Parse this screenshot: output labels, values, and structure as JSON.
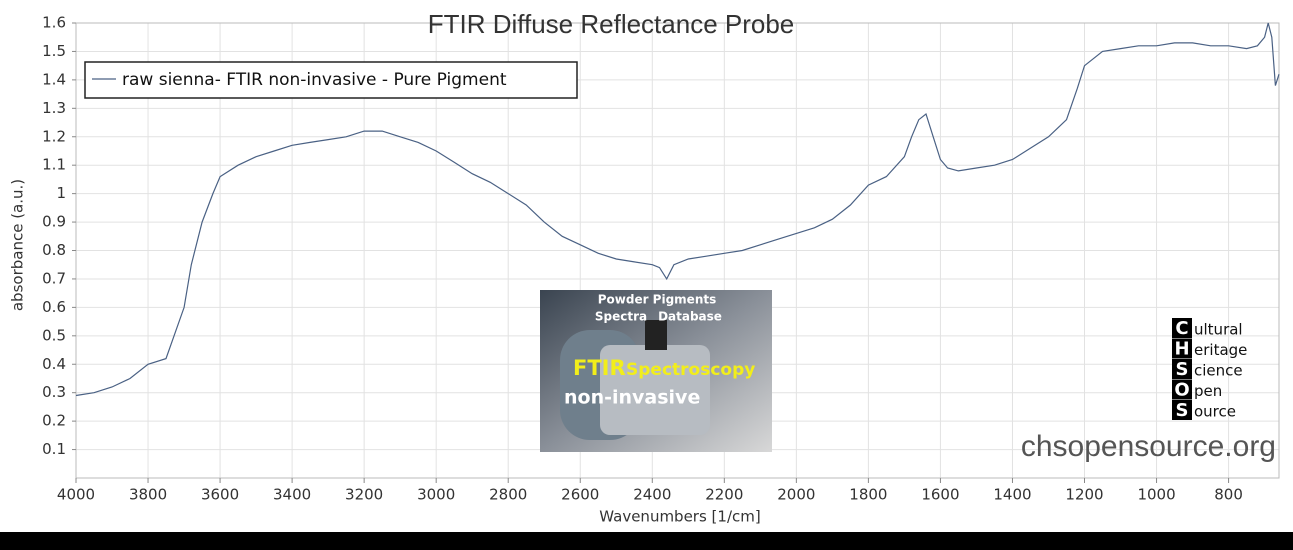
{
  "chart_data": {
    "type": "line",
    "title": "FTIR Diffuse Reflectance Probe",
    "x_label": "Wavenumbers [1/cm]",
    "y_label": "absorbance (a.u.)",
    "x": [
      4000,
      3950,
      3900,
      3850,
      3800,
      3750,
      3700,
      3680,
      3650,
      3620,
      3600,
      3550,
      3500,
      3450,
      3400,
      3350,
      3300,
      3250,
      3200,
      3150,
      3100,
      3050,
      3000,
      2950,
      2900,
      2850,
      2800,
      2750,
      2700,
      2650,
      2600,
      2550,
      2500,
      2450,
      2400,
      2380,
      2360,
      2340,
      2300,
      2250,
      2200,
      2150,
      2100,
      2050,
      2000,
      1950,
      1900,
      1850,
      1800,
      1750,
      1700,
      1680,
      1660,
      1640,
      1620,
      1600,
      1580,
      1550,
      1500,
      1450,
      1400,
      1350,
      1300,
      1250,
      1220,
      1200,
      1150,
      1100,
      1050,
      1000,
      950,
      900,
      850,
      800,
      750,
      720,
      700,
      690,
      680,
      670,
      660
    ],
    "series": [
      {
        "name": "raw sienna- FTIR non-invasive - Pure Pigment",
        "color": "#4a6184",
        "values": [
          0.29,
          0.3,
          0.32,
          0.35,
          0.4,
          0.42,
          0.6,
          0.75,
          0.9,
          1.0,
          1.06,
          1.1,
          1.13,
          1.15,
          1.17,
          1.18,
          1.19,
          1.2,
          1.22,
          1.22,
          1.2,
          1.18,
          1.15,
          1.11,
          1.07,
          1.04,
          1.0,
          0.96,
          0.9,
          0.85,
          0.82,
          0.79,
          0.77,
          0.76,
          0.75,
          0.74,
          0.7,
          0.75,
          0.77,
          0.78,
          0.79,
          0.8,
          0.82,
          0.84,
          0.86,
          0.88,
          0.91,
          0.96,
          1.03,
          1.06,
          1.13,
          1.2,
          1.26,
          1.28,
          1.2,
          1.12,
          1.09,
          1.08,
          1.09,
          1.1,
          1.12,
          1.16,
          1.2,
          1.26,
          1.37,
          1.45,
          1.5,
          1.51,
          1.52,
          1.52,
          1.53,
          1.53,
          1.52,
          1.52,
          1.51,
          1.52,
          1.55,
          1.6,
          1.55,
          1.38,
          1.42
        ]
      }
    ],
    "xlim": [
      4000,
      660
    ],
    "ylim": [
      0,
      1.6
    ],
    "xticks": [
      4000,
      3800,
      3600,
      3400,
      3200,
      3000,
      2800,
      2600,
      2400,
      2200,
      2000,
      1800,
      1600,
      1400,
      1200,
      1000,
      800
    ],
    "yticks": [
      0.1,
      0.2,
      0.3,
      0.4,
      0.5,
      0.6,
      0.7,
      0.8,
      0.9,
      1,
      1.1,
      1.2,
      1.3,
      1.4,
      1.5,
      1.6
    ],
    "grid": true,
    "legend": "top-left"
  },
  "inset": {
    "line1": "Powder Pigments",
    "line2a": "Spectra",
    "line2b": "Database",
    "big1": "FTIR",
    "big2": "Spectroscopy",
    "big3": "non-invasive"
  },
  "logo": {
    "rows": [
      {
        "letter": "C",
        "rest": "ultural"
      },
      {
        "letter": "H",
        "rest": "eritage"
      },
      {
        "letter": "S",
        "rest": "cience"
      },
      {
        "letter": "O",
        "rest": "pen"
      },
      {
        "letter": "S",
        "rest": "ource"
      }
    ]
  },
  "watermark": "chsopensource.org"
}
